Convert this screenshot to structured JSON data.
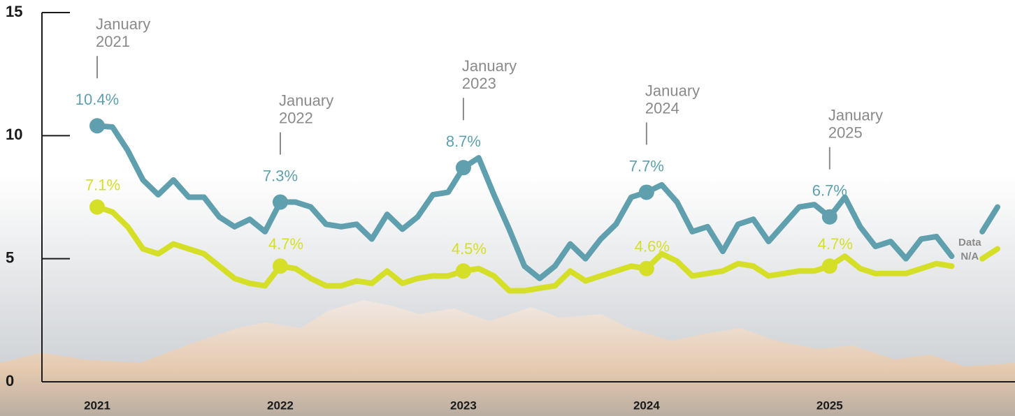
{
  "chart_data": {
    "type": "line",
    "categories": [
      "2021",
      null,
      null,
      null,
      null,
      null,
      null,
      null,
      null,
      null,
      null,
      null,
      "2022",
      null,
      null,
      null,
      null,
      null,
      null,
      null,
      null,
      null,
      null,
      null,
      "2023",
      null,
      null,
      null,
      null,
      null,
      null,
      null,
      null,
      null,
      null,
      null,
      "2024",
      null,
      null,
      null,
      null,
      null,
      null,
      null,
      null,
      null,
      null,
      null,
      "2025",
      null,
      null,
      null,
      null,
      null,
      null,
      null,
      null,
      null,
      null,
      null
    ],
    "series": [
      {
        "color": "#5f9fae",
        "values": [
          10.4,
          10.35,
          9.4,
          8.2,
          7.6,
          8.2,
          7.5,
          7.5,
          6.7,
          6.3,
          6.6,
          6.1,
          7.3,
          7.3,
          7.1,
          6.4,
          6.3,
          6.4,
          5.8,
          6.8,
          6.2,
          6.7,
          7.6,
          7.7,
          8.7,
          9.1,
          7.6,
          6.2,
          4.7,
          4.2,
          4.7,
          5.6,
          5.0,
          5.8,
          6.4,
          7.5,
          7.7,
          8.0,
          7.3,
          6.1,
          6.3,
          5.3,
          6.4,
          6.6,
          5.7,
          6.4,
          7.1,
          7.2,
          6.7,
          7.5,
          6.3,
          5.5,
          5.7,
          5.0,
          5.8,
          5.9,
          5.1,
          null,
          6.1,
          7.1
        ],
        "value_labels": [
          "10.4%",
          null,
          null,
          null,
          null,
          null,
          null,
          null,
          null,
          null,
          null,
          null,
          "7.3%",
          null,
          null,
          null,
          null,
          null,
          null,
          null,
          null,
          null,
          null,
          null,
          "8.7%",
          null,
          null,
          null,
          null,
          null,
          null,
          null,
          null,
          null,
          null,
          null,
          "7.7%",
          null,
          null,
          null,
          null,
          null,
          null,
          null,
          null,
          null,
          null,
          null,
          "6.7%",
          null,
          null,
          null,
          null,
          null,
          null,
          null,
          null,
          null,
          null,
          null
        ]
      },
      {
        "color": "#d5df27",
        "values": [
          7.1,
          6.9,
          6.3,
          5.4,
          5.2,
          5.6,
          5.4,
          5.2,
          4.7,
          4.2,
          4.0,
          3.9,
          4.7,
          4.6,
          4.2,
          3.9,
          3.9,
          4.1,
          4.0,
          4.5,
          4.0,
          4.2,
          4.3,
          4.3,
          4.5,
          4.6,
          4.3,
          3.7,
          3.7,
          3.8,
          3.9,
          4.5,
          4.1,
          4.3,
          4.5,
          4.7,
          4.6,
          5.2,
          4.9,
          4.3,
          4.4,
          4.5,
          4.8,
          4.7,
          4.3,
          4.4,
          4.5,
          4.5,
          4.7,
          5.1,
          4.6,
          4.4,
          4.4,
          4.4,
          4.6,
          4.8,
          4.7,
          null,
          5.0,
          5.4
        ],
        "value_labels": [
          "7.1%",
          null,
          null,
          null,
          null,
          null,
          null,
          null,
          null,
          null,
          null,
          null,
          "4.7%",
          null,
          null,
          null,
          null,
          null,
          null,
          null,
          null,
          null,
          null,
          null,
          "4.5%",
          null,
          null,
          null,
          null,
          null,
          null,
          null,
          null,
          null,
          null,
          null,
          "4.6%",
          null,
          null,
          null,
          null,
          null,
          null,
          null,
          null,
          null,
          null,
          null,
          "4.7%",
          null,
          null,
          null,
          null,
          null,
          null,
          null,
          null,
          null,
          null,
          null
        ]
      }
    ],
    "annotations": [
      [
        "January",
        "2021"
      ],
      [
        "January",
        "2022"
      ],
      [
        "January",
        "2023"
      ],
      [
        "January",
        "2024"
      ],
      [
        "January",
        "2025"
      ]
    ],
    "gap_note": [
      "Data",
      "N/A"
    ],
    "ylim": [
      0,
      15
    ],
    "yticks": [
      0,
      5,
      10,
      15
    ]
  }
}
